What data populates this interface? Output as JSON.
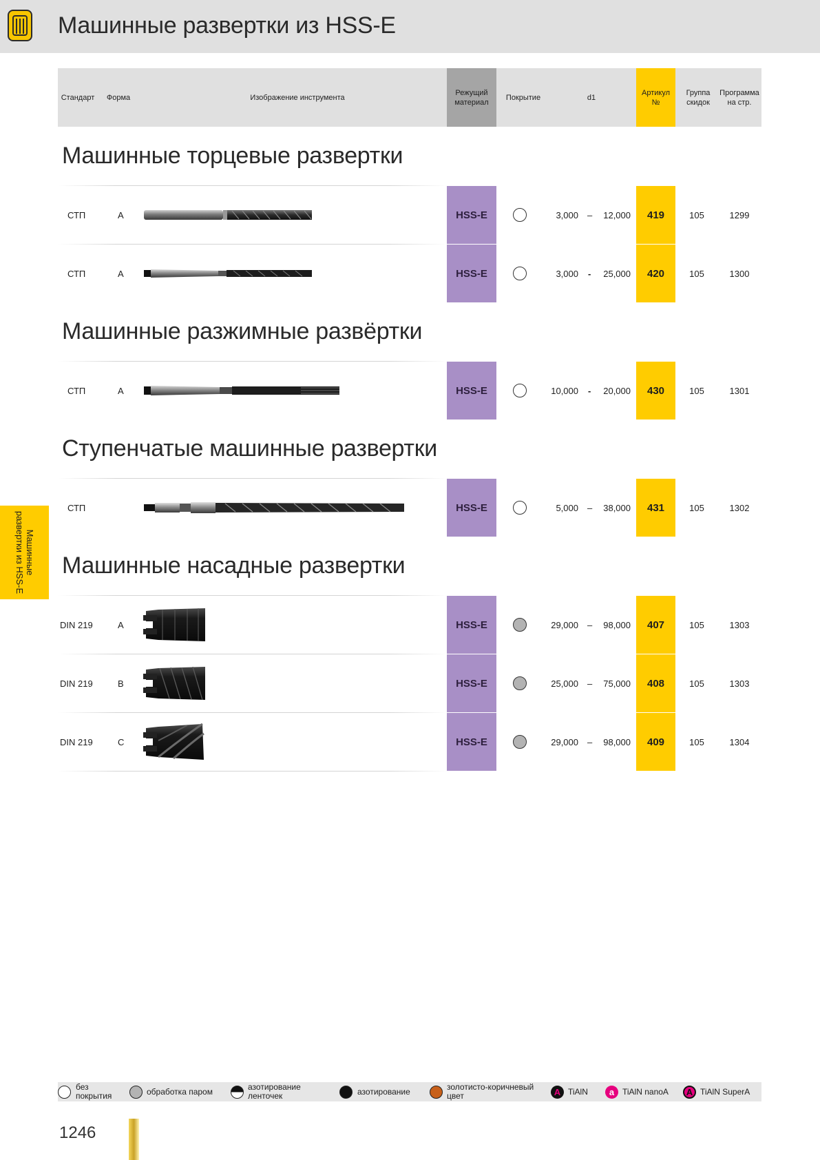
{
  "header": {
    "title": "Машинные развертки из HSS-E"
  },
  "table_header": {
    "standard": "Стандарт",
    "form": "Форма",
    "image": "Изображение инструмента",
    "material": "Режущий материал",
    "coating": "Покрытие",
    "d1": "d1",
    "article": "Артикул №",
    "discount": "Группа скидок",
    "program": "Программа на стр."
  },
  "sections": [
    {
      "title": "Машинные торцевые развертки",
      "rows": [
        {
          "standard": "СТП",
          "form": "A",
          "tool": "straight-shank-reamer",
          "material": "HSS-E",
          "coating": "без покрытия",
          "d1_from": "3,000",
          "dash": "–",
          "d1_to": "12,000",
          "article": "419",
          "discount": "105",
          "page": "1299"
        },
        {
          "standard": "СТП",
          "form": "A",
          "tool": "taper-shank-reamer",
          "material": "HSS-E",
          "coating": "без покрытия",
          "d1_from": "3,000",
          "dash": "-",
          "d1_to": "25,000",
          "article": "420",
          "discount": "105",
          "page": "1300"
        }
      ]
    },
    {
      "title": "Машинные разжимные развёртки",
      "rows": [
        {
          "standard": "СТП",
          "form": "A",
          "tool": "expanding-reamer",
          "material": "HSS-E",
          "coating": "без покрытия",
          "d1_from": "10,000",
          "dash": "-",
          "d1_to": "20,000",
          "article": "430",
          "discount": "105",
          "page": "1301"
        }
      ]
    },
    {
      "title": "Ступенчатые машинные развертки",
      "rows": [
        {
          "standard": "СТП",
          "form": "",
          "tool": "step-reamer",
          "material": "HSS-E",
          "coating": "без покрытия",
          "d1_from": "5,000",
          "dash": "–",
          "d1_to": "38,000",
          "article": "431",
          "discount": "105",
          "page": "1302"
        }
      ]
    },
    {
      "title": "Машинные насадные развертки",
      "rows": [
        {
          "standard": "DIN 219",
          "form": "A",
          "tool": "shell-reamer-a",
          "material": "HSS-E",
          "coating": "обработка паром",
          "d1_from": "29,000",
          "dash": "–",
          "d1_to": "98,000",
          "article": "407",
          "discount": "105",
          "page": "1303"
        },
        {
          "standard": "DIN 219",
          "form": "B",
          "tool": "shell-reamer-b",
          "material": "HSS-E",
          "coating": "обработка паром",
          "d1_from": "25,000",
          "dash": "–",
          "d1_to": "75,000",
          "article": "408",
          "discount": "105",
          "page": "1303"
        },
        {
          "standard": "DIN 219",
          "form": "C",
          "tool": "shell-reamer-c",
          "material": "HSS-E",
          "coating": "обработка паром",
          "d1_from": "29,000",
          "dash": "–",
          "d1_to": "98,000",
          "article": "409",
          "discount": "105",
          "page": "1304"
        }
      ]
    }
  ],
  "side_tab": {
    "line1": "Машинные",
    "line2": "развертки из HSS-E"
  },
  "legend": [
    {
      "icon": "white-circle-icon",
      "label": "без покрытия"
    },
    {
      "icon": "grey-circle-icon",
      "label": "обработка паром"
    },
    {
      "icon": "half-black-circle-icon",
      "label": "азотирование ленточек"
    },
    {
      "icon": "black-circle-icon",
      "label": "азотирование"
    },
    {
      "icon": "brown-circle-icon",
      "label": "золотисто-коричневый цвет"
    },
    {
      "icon": "letter-a-black-icon",
      "letter": "A",
      "label": "TiAlN"
    },
    {
      "icon": "letter-a-pink-icon",
      "letter": "a",
      "label": "TiAlN nanoA"
    },
    {
      "icon": "letter-a-ring-icon",
      "letter": "A",
      "label": "TiAlN SuperA"
    }
  ],
  "colors": {
    "material": "#a88fc6",
    "article": "#ffcc00",
    "header_bg": "#e0e0e0",
    "steamed": "#b3b3b3",
    "gold_brown": "#c8601a"
  },
  "footer": {
    "page_number": "1246"
  }
}
